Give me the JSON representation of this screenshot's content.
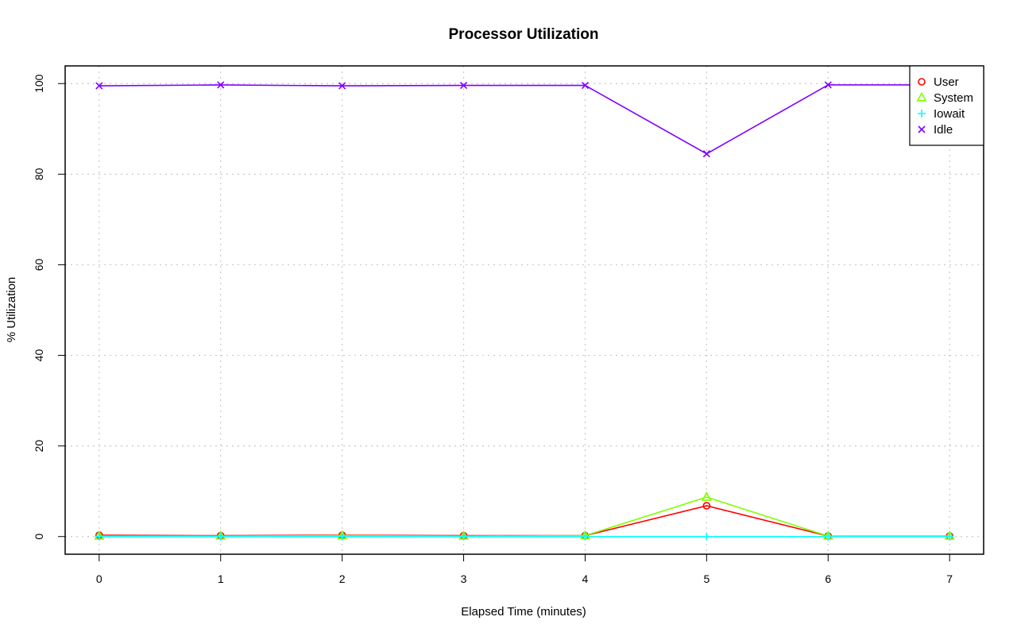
{
  "chart_data": {
    "type": "line",
    "title": "Processor Utilization",
    "xlabel": "Elapsed Time (minutes)",
    "ylabel": "% Utilization",
    "x": [
      0,
      1,
      2,
      3,
      4,
      5,
      6,
      7
    ],
    "xticks": [
      "0",
      "1",
      "2",
      "3",
      "4",
      "5",
      "6",
      "7"
    ],
    "yticks": [
      "0",
      "20",
      "40",
      "60",
      "80",
      "100"
    ],
    "xlim": [
      -0.28,
      7.28
    ],
    "ylim": [
      -3.9,
      103.9
    ],
    "grid": true,
    "legend_position": "top-right",
    "series": [
      {
        "name": "User",
        "color": "#ff0000",
        "marker": "circle",
        "values": [
          0.3,
          0.2,
          0.3,
          0.2,
          0.2,
          6.8,
          0.1,
          0.1
        ]
      },
      {
        "name": "System",
        "color": "#80ff00",
        "marker": "triangle",
        "values": [
          0.1,
          0.1,
          0.2,
          0.1,
          0.2,
          8.7,
          0.1,
          0.1
        ]
      },
      {
        "name": "Iowait",
        "color": "#00ffff",
        "marker": "plus",
        "values": [
          0.0,
          0.0,
          0.0,
          0.0,
          0.0,
          0.0,
          0.0,
          0.0
        ]
      },
      {
        "name": "Idle",
        "color": "#8000ff",
        "marker": "x",
        "values": [
          99.5,
          99.7,
          99.5,
          99.6,
          99.6,
          84.5,
          99.7,
          99.7
        ]
      }
    ]
  }
}
